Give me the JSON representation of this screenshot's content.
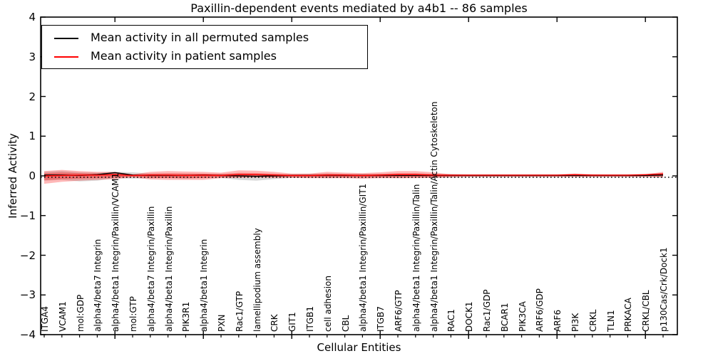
{
  "title": "Paxillin-dependent events mediated by a4b1 -- 86 samples",
  "axes": {
    "ylabel": "Inferred Activity",
    "xlabel": "Cellular Entities",
    "yticks": [
      "4",
      "3",
      "2",
      "1",
      "0",
      "−1",
      "−2",
      "−3",
      "−4"
    ]
  },
  "legend": [
    {
      "label": "Mean activity in all permuted samples",
      "color": "#000000"
    },
    {
      "label": "Mean activity in patient samples",
      "color": "#ff0000"
    }
  ],
  "colors": {
    "permuted_line": "#000000",
    "patient_line": "#ff0000",
    "permuted_band": "#aaaaaa",
    "patient_band": "#ff0000",
    "zero_line": "#000000",
    "frame": "#000000"
  },
  "chart_data": {
    "type": "line",
    "title": "Paxillin-dependent events mediated by a4b1 -- 86 samples",
    "xlabel": "Cellular Entities",
    "ylabel": "Inferred Activity",
    "ylim": [
      -4,
      4
    ],
    "yticks": [
      4,
      3,
      2,
      1,
      0,
      -1,
      -2,
      -3,
      -4
    ],
    "grid": false,
    "legend_position": "upper left",
    "zero_line": {
      "style": "dotted",
      "y": 0
    },
    "categories": [
      "ITGA4",
      "VCAM1",
      "mol:GDP",
      "alpha4/beta7 Integrin",
      "alpha4/beta1 Integrin/Paxillin/VCAM1",
      "mol:GTP",
      "alpha4/beta7 Integrin/Paxillin",
      "alpha4/beta1 Integrin/Paxillin",
      "PIK3R1",
      "alpha4/beta1 Integrin",
      "PXN",
      "Rac1/GTP",
      "lamellipodium assembly",
      "CRK",
      "GIT1",
      "ITGB1",
      "cell adhesion",
      "CBL",
      "alpha4/beta1 Integrin/Paxillin/GIT1",
      "ITGB7",
      "ARF6/GTP",
      "alpha4/beta1 Integrin/Paxillin/Talin",
      "alpha4/beta1 Integrin/Paxillin/Talin/Actin Cytoskeleton",
      "RAC1",
      "DOCK1",
      "Rac1/GDP",
      "BCAR1",
      "PIK3CA",
      "ARF6/GDP",
      "ARF6",
      "PI3K",
      "CRKL",
      "TLN1",
      "PRKACA",
      "CRKL/CBL",
      "p130Cas/Crk/Dock1"
    ],
    "series": [
      {
        "name": "Mean activity in all permuted samples",
        "color": "#000000",
        "values": [
          0.02,
          0.02,
          0.01,
          0.03,
          0.08,
          0.02,
          0.01,
          0.01,
          0.01,
          0.02,
          0.01,
          0.0,
          -0.01,
          0.0,
          0.01,
          0.01,
          0.01,
          0.01,
          0.01,
          0.01,
          0.01,
          0.01,
          0.01,
          0.01,
          0.01,
          0.01,
          0.01,
          0.01,
          0.01,
          0.01,
          0.01,
          0.01,
          0.01,
          0.01,
          0.01,
          0.02
        ]
      },
      {
        "name": "Mean activity in patient samples",
        "color": "#ff0000",
        "values": [
          0.0,
          0.01,
          0.02,
          0.02,
          0.03,
          0.01,
          0.02,
          0.02,
          0.01,
          0.02,
          0.01,
          0.03,
          0.03,
          0.02,
          0.01,
          0.01,
          0.02,
          0.02,
          0.01,
          0.02,
          0.03,
          0.03,
          0.02,
          0.02,
          0.02,
          0.02,
          0.02,
          0.02,
          0.02,
          0.02,
          0.03,
          0.02,
          0.02,
          0.02,
          0.03,
          0.05
        ]
      }
    ],
    "bands": [
      {
        "name": "permuted-samples-spread",
        "color": "#aaaaaa",
        "opacity": 0.45,
        "upper": [
          0.1,
          0.12,
          0.09,
          0.08,
          0.1,
          0.09,
          0.06,
          0.05,
          0.05,
          0.05,
          0.05,
          0.06,
          0.05,
          0.04,
          0.04,
          0.05,
          0.06,
          0.05,
          0.05,
          0.05,
          0.05,
          0.05,
          0.04,
          0.05,
          0.04,
          0.04,
          0.04,
          0.04,
          0.04,
          0.04,
          0.04,
          0.04,
          0.04,
          0.04,
          0.04,
          0.05
        ],
        "lower": [
          -0.12,
          -0.1,
          -0.14,
          -0.12,
          -0.06,
          -0.07,
          -0.06,
          -0.05,
          -0.07,
          -0.05,
          -0.05,
          -0.1,
          -0.12,
          -0.08,
          -0.05,
          -0.05,
          -0.06,
          -0.05,
          -0.06,
          -0.05,
          -0.06,
          -0.05,
          -0.05,
          -0.05,
          -0.04,
          -0.04,
          -0.04,
          -0.04,
          -0.04,
          -0.04,
          -0.04,
          -0.04,
          -0.04,
          -0.04,
          -0.04,
          -0.05
        ]
      },
      {
        "name": "patient-samples-spread",
        "color": "#ff0000",
        "opacity": 0.28,
        "upper": [
          0.12,
          0.15,
          0.12,
          0.1,
          0.1,
          0.04,
          0.1,
          0.12,
          0.11,
          0.1,
          0.08,
          0.14,
          0.13,
          0.1,
          0.06,
          0.06,
          0.1,
          0.08,
          0.07,
          0.09,
          0.12,
          0.12,
          0.09,
          0.04,
          0.03,
          0.03,
          0.03,
          0.03,
          0.03,
          0.03,
          0.06,
          0.04,
          0.03,
          0.03,
          0.04,
          0.1
        ],
        "lower": [
          -0.2,
          -0.15,
          -0.12,
          -0.1,
          -0.08,
          -0.04,
          -0.09,
          -0.1,
          -0.1,
          -0.1,
          -0.06,
          -0.05,
          -0.04,
          -0.05,
          -0.05,
          -0.06,
          -0.06,
          -0.06,
          -0.07,
          -0.06,
          -0.06,
          -0.06,
          -0.05,
          -0.03,
          -0.02,
          -0.02,
          -0.02,
          -0.02,
          -0.02,
          -0.02,
          -0.02,
          -0.02,
          -0.02,
          -0.02,
          -0.02,
          -0.03
        ]
      }
    ]
  }
}
